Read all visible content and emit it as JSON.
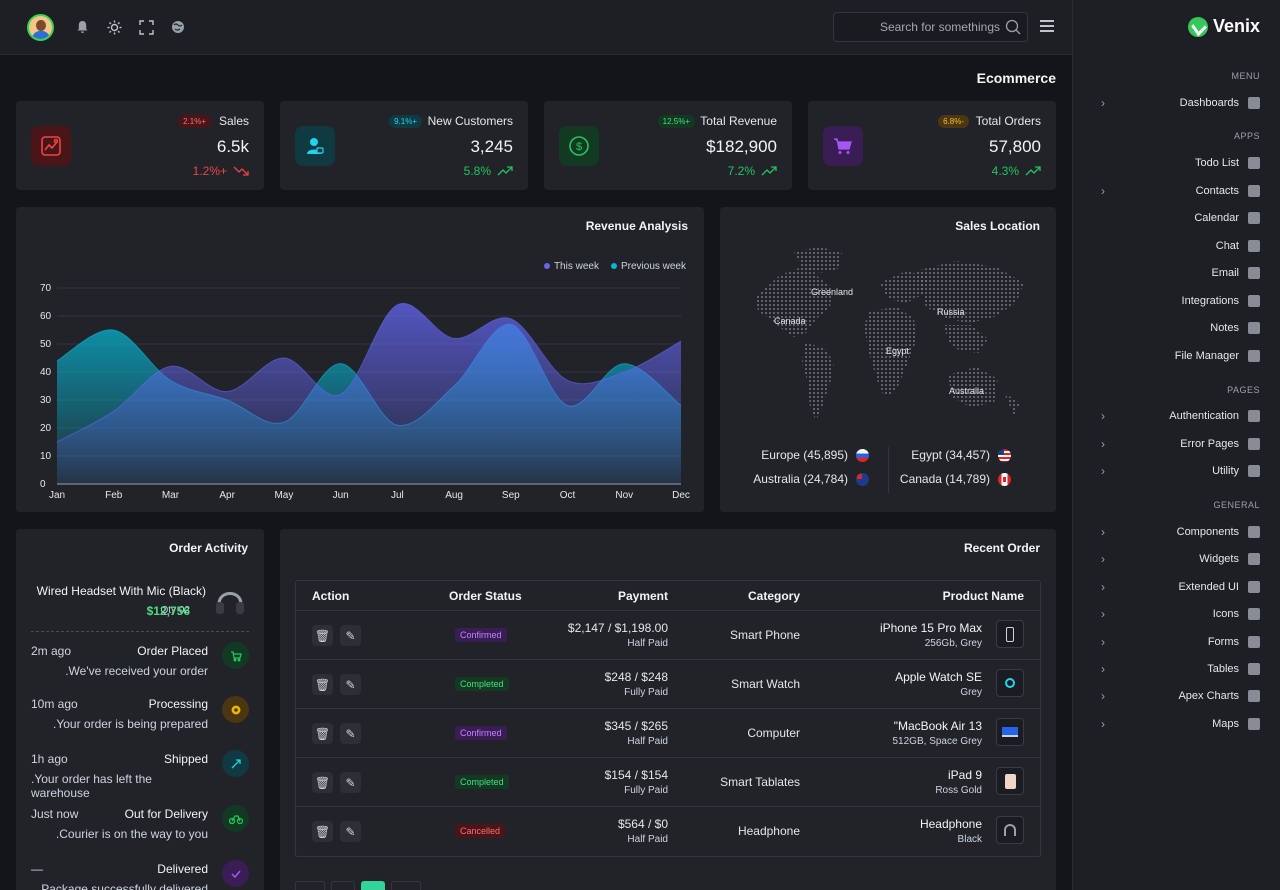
{
  "header": {
    "search_placeholder": "Search for somethings",
    "page_title": "Ecommerce"
  },
  "sidebar": {
    "brand": "Venix",
    "sections": {
      "menu": "MENU",
      "apps": "APPS",
      "pages": "PAGES",
      "general": "GENERAL"
    },
    "items": [
      "Dashboards",
      "Todo List",
      "Contacts",
      "Calendar",
      "Chat",
      "Email",
      "Integrations",
      "Notes",
      "File Manager",
      "Authentication",
      "Error Pages",
      "Utility",
      "Components",
      "Widgets",
      "Extended UI",
      "Icons",
      "Forms",
      "Tables",
      "Apex Charts",
      "Maps"
    ]
  },
  "stats": [
    {
      "label": "Sales",
      "badge": "2.1%+",
      "value": "6.5k",
      "delta": "1.2%+",
      "color": "#ef4444"
    },
    {
      "label": "New Customers",
      "badge": "9.1%+",
      "value": "3,245",
      "delta": "5.8%",
      "color": "#22c55e"
    },
    {
      "label": "Total Revenue",
      "badge": "12.5%+",
      "value": "$182,900",
      "delta": "7.2%",
      "color": "#22c55e"
    },
    {
      "label": "Total Orders",
      "badge": "6.8%-",
      "value": "57,800",
      "delta": "4.3%",
      "color": "#22c55e"
    }
  ],
  "revenue": {
    "title": "Revenue Analysis",
    "legend_this": "This week",
    "legend_prev": "Previous week"
  },
  "chart_data": {
    "type": "area",
    "categories": [
      "Jan",
      "Feb",
      "Mar",
      "Apr",
      "May",
      "Jun",
      "Jul",
      "Aug",
      "Sep",
      "Oct",
      "Nov",
      "Dec"
    ],
    "series": [
      {
        "name": "This week",
        "color": "#6366f1",
        "values": [
          15,
          26,
          42,
          33,
          45,
          32,
          64,
          52,
          59,
          37,
          40,
          51
        ]
      },
      {
        "name": "Previous week",
        "color": "#06b6d4",
        "values": [
          44,
          55,
          37,
          30,
          22,
          43,
          21,
          35,
          57,
          28,
          43,
          28
        ]
      }
    ],
    "ylim": [
      0,
      70
    ],
    "yticks": [
      0,
      10,
      20,
      30,
      40,
      50,
      60,
      70
    ],
    "grid": true,
    "legend": "top-right"
  },
  "sales_location": {
    "title": "Sales Location",
    "map_labels": [
      "Greenland",
      "Canada",
      "Russia",
      "Egypt",
      "Australia"
    ],
    "regions": [
      {
        "label": "Europe (45,895)"
      },
      {
        "label": "Egypt (34,457)"
      },
      {
        "label": "Australia (24,784)"
      },
      {
        "label": "Canada (14,789)"
      }
    ]
  },
  "activity": {
    "title": "Order Activity",
    "product": "Wired Headset With Mic (Black)",
    "qty": "Qty 02",
    "price": "$12,756",
    "items": [
      {
        "time": "2m ago",
        "title": "Order Placed",
        "desc": ".We've received your order",
        "color": "#22c55e"
      },
      {
        "time": "10m ago",
        "title": "Processing",
        "desc": ".Your order is being prepared",
        "color": "#eab308"
      },
      {
        "time": "1h ago",
        "title": "Shipped",
        "desc": ".Your order has left the warehouse",
        "color": "#06b6d4"
      },
      {
        "time": "Just now",
        "title": "Out for Delivery",
        "desc": ".Courier is on the way to you",
        "color": "#22c55e"
      },
      {
        "time": "—",
        "title": "Delivered",
        "desc": "Package successfully delivered",
        "color": "#8b5cf6"
      }
    ]
  },
  "orders": {
    "title": "Recent Order",
    "columns": [
      "Action",
      "Order Status",
      "Payment",
      "Category",
      "Product Name"
    ],
    "rows": [
      {
        "status": "Confirmed",
        "pay": "$2,147 / $1,198.00",
        "pay_status": "Half Paid",
        "category": "Smart Phone",
        "name": "iPhone 15 Pro Max",
        "variant": "256Gb, Grey"
      },
      {
        "status": "Completed",
        "pay": "$248 / $248",
        "pay_status": "Fully Paid",
        "category": "Smart Watch",
        "name": "Apple Watch SE",
        "variant": "Grey"
      },
      {
        "status": "Confirmed",
        "pay": "$345 / $265",
        "pay_status": "Half Paid",
        "category": "Computer",
        "name": "\"MacBook Air 13",
        "variant": "512GB, Space Grey"
      },
      {
        "status": "Completed",
        "pay": "$154 / $154",
        "pay_status": "Fully Paid",
        "category": "Smart Tablates",
        "name": "iPad 9",
        "variant": "Ross Gold"
      },
      {
        "status": "Cancelled",
        "pay": "$564 / $0",
        "pay_status": "Half Paid",
        "category": "Headphone",
        "name": "Headphone",
        "variant": "Black"
      }
    ]
  }
}
